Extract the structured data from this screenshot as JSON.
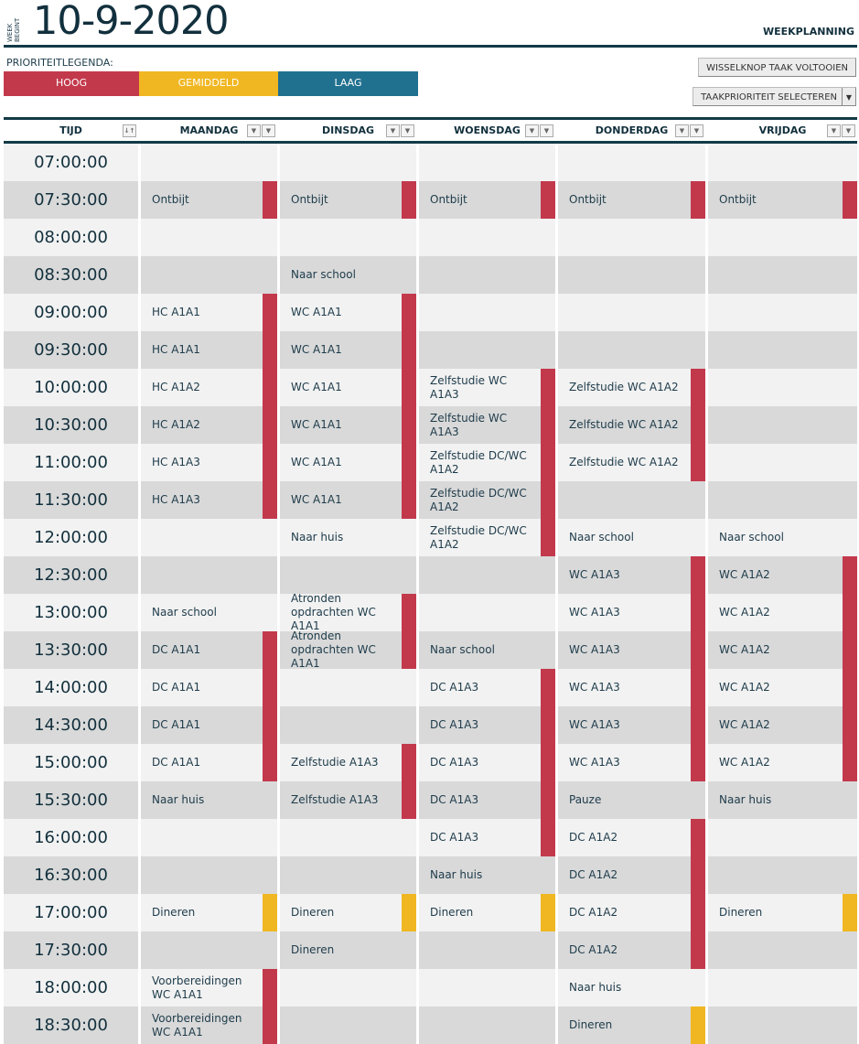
{
  "header": {
    "week_label": "WEEK BEGINT",
    "date": "10-9-2020",
    "title": "WEEKPLANNING"
  },
  "legend": {
    "label": "PRIORITEITLEGENDA:",
    "items": [
      {
        "label": "HOOG",
        "color": "#c3394c"
      },
      {
        "label": "GEMIDDELD",
        "color": "#f0b722"
      },
      {
        "label": "LAAG",
        "color": "#20718f"
      }
    ]
  },
  "buttons": {
    "toggle": "WISSELKNOP TAAK VOLTOOIEN",
    "priority": "TAAKPRIORITEIT SELECTEREN"
  },
  "colors": {
    "high": "#c3394c",
    "medium": "#f0b722",
    "low": "#20718f",
    "row_light": "#f2f2f2",
    "row_dark": "#d9d9d9"
  },
  "columns": [
    "TIJD",
    "MAANDAG",
    "DINSDAG",
    "WOENSDAG",
    "DONDERDAG",
    "VRIJDAG"
  ],
  "times": [
    "07:00:00",
    "07:30:00",
    "08:00:00",
    "08:30:00",
    "09:00:00",
    "09:30:00",
    "10:00:00",
    "10:30:00",
    "11:00:00",
    "11:30:00",
    "12:00:00",
    "12:30:00",
    "13:00:00",
    "13:30:00",
    "14:00:00",
    "14:30:00",
    "15:00:00",
    "15:30:00",
    "16:00:00",
    "16:30:00",
    "17:00:00",
    "17:30:00",
    "18:00:00",
    "18:30:00"
  ],
  "days": [
    [
      [
        "",
        ""
      ],
      [
        "Ontbijt",
        "high"
      ],
      [
        "",
        ""
      ],
      [
        "",
        ""
      ],
      [
        "HC A1A1",
        "high"
      ],
      [
        "HC A1A1",
        "high"
      ],
      [
        "HC A1A2",
        "high"
      ],
      [
        "HC A1A2",
        "high"
      ],
      [
        "HC A1A3",
        "high"
      ],
      [
        "HC A1A3",
        "high"
      ],
      [
        "",
        ""
      ],
      [
        "",
        ""
      ],
      [
        "Naar school",
        ""
      ],
      [
        "DC A1A1",
        "high"
      ],
      [
        "DC A1A1",
        "high"
      ],
      [
        "DC A1A1",
        "high"
      ],
      [
        "DC A1A1",
        "high"
      ],
      [
        "Naar huis",
        ""
      ],
      [
        "",
        ""
      ],
      [
        "",
        ""
      ],
      [
        "Dineren",
        "medium"
      ],
      [
        "",
        ""
      ],
      [
        "Voorbereidingen WC A1A1",
        "high"
      ],
      [
        "Voorbereidingen WC A1A1",
        "high"
      ]
    ],
    [
      [
        "",
        ""
      ],
      [
        "Ontbijt",
        "high"
      ],
      [
        "",
        ""
      ],
      [
        "Naar school",
        ""
      ],
      [
        "WC A1A1",
        "high"
      ],
      [
        "WC A1A1",
        "high"
      ],
      [
        "WC A1A1",
        "high"
      ],
      [
        "WC A1A1",
        "high"
      ],
      [
        "WC A1A1",
        "high"
      ],
      [
        "WC A1A1",
        "high"
      ],
      [
        "Naar huis",
        ""
      ],
      [
        "",
        ""
      ],
      [
        "Atronden opdrachten WC A1A1",
        "high"
      ],
      [
        "Atronden opdrachten WC A1A1",
        "high"
      ],
      [
        "",
        ""
      ],
      [
        "",
        ""
      ],
      [
        "Zelfstudie A1A3",
        "high"
      ],
      [
        "Zelfstudie A1A3",
        "high"
      ],
      [
        "",
        ""
      ],
      [
        "",
        ""
      ],
      [
        "Dineren",
        "medium"
      ],
      [
        "Dineren",
        ""
      ],
      [
        "",
        ""
      ],
      [
        "",
        ""
      ]
    ],
    [
      [
        "",
        ""
      ],
      [
        "Ontbijt",
        "high"
      ],
      [
        "",
        ""
      ],
      [
        "",
        ""
      ],
      [
        "",
        ""
      ],
      [
        "",
        ""
      ],
      [
        "Zelfstudie WC A1A3",
        "high"
      ],
      [
        "Zelfstudie WC A1A3",
        "high"
      ],
      [
        "Zelfstudie DC/WC A1A2",
        "high"
      ],
      [
        "Zelfstudie DC/WC A1A2",
        "high"
      ],
      [
        "Zelfstudie DC/WC A1A2",
        "high"
      ],
      [
        "",
        ""
      ],
      [
        "",
        ""
      ],
      [
        "Naar school",
        ""
      ],
      [
        "DC A1A3",
        "high"
      ],
      [
        "DC A1A3",
        "high"
      ],
      [
        "DC A1A3",
        "high"
      ],
      [
        "DC A1A3",
        "high"
      ],
      [
        "DC A1A3",
        "high"
      ],
      [
        "Naar huis",
        ""
      ],
      [
        "Dineren",
        "medium"
      ],
      [
        "",
        ""
      ],
      [
        "",
        ""
      ],
      [
        "",
        ""
      ]
    ],
    [
      [
        "",
        ""
      ],
      [
        "Ontbijt",
        "high"
      ],
      [
        "",
        ""
      ],
      [
        "",
        ""
      ],
      [
        "",
        ""
      ],
      [
        "",
        ""
      ],
      [
        "Zelfstudie WC A1A2",
        "high"
      ],
      [
        "Zelfstudie WC A1A2",
        "high"
      ],
      [
        "Zelfstudie WC A1A2",
        "high"
      ],
      [
        "",
        ""
      ],
      [
        "Naar school",
        ""
      ],
      [
        "WC A1A3",
        "high"
      ],
      [
        "WC A1A3",
        "high"
      ],
      [
        "WC A1A3",
        "high"
      ],
      [
        "WC A1A3",
        "high"
      ],
      [
        "WC A1A3",
        "high"
      ],
      [
        "WC A1A3",
        "high"
      ],
      [
        "Pauze",
        ""
      ],
      [
        "DC A1A2",
        "high"
      ],
      [
        "DC A1A2",
        "high"
      ],
      [
        "DC A1A2",
        "high"
      ],
      [
        "DC A1A2",
        "high"
      ],
      [
        "Naar huis",
        ""
      ],
      [
        "Dineren",
        "medium"
      ]
    ],
    [
      [
        "",
        ""
      ],
      [
        "Ontbijt",
        "high"
      ],
      [
        "",
        ""
      ],
      [
        "",
        ""
      ],
      [
        "",
        ""
      ],
      [
        "",
        ""
      ],
      [
        "",
        ""
      ],
      [
        "",
        ""
      ],
      [
        "",
        ""
      ],
      [
        "",
        ""
      ],
      [
        "Naar school",
        ""
      ],
      [
        "WC A1A2",
        "high"
      ],
      [
        "WC A1A2",
        "high"
      ],
      [
        "WC A1A2",
        "high"
      ],
      [
        "WC A1A2",
        "high"
      ],
      [
        "WC A1A2",
        "high"
      ],
      [
        "WC A1A2",
        "high"
      ],
      [
        "Naar huis",
        ""
      ],
      [
        "",
        ""
      ],
      [
        "",
        ""
      ],
      [
        "Dineren",
        "medium"
      ],
      [
        "",
        ""
      ],
      [
        "",
        ""
      ],
      [
        "",
        ""
      ]
    ]
  ]
}
